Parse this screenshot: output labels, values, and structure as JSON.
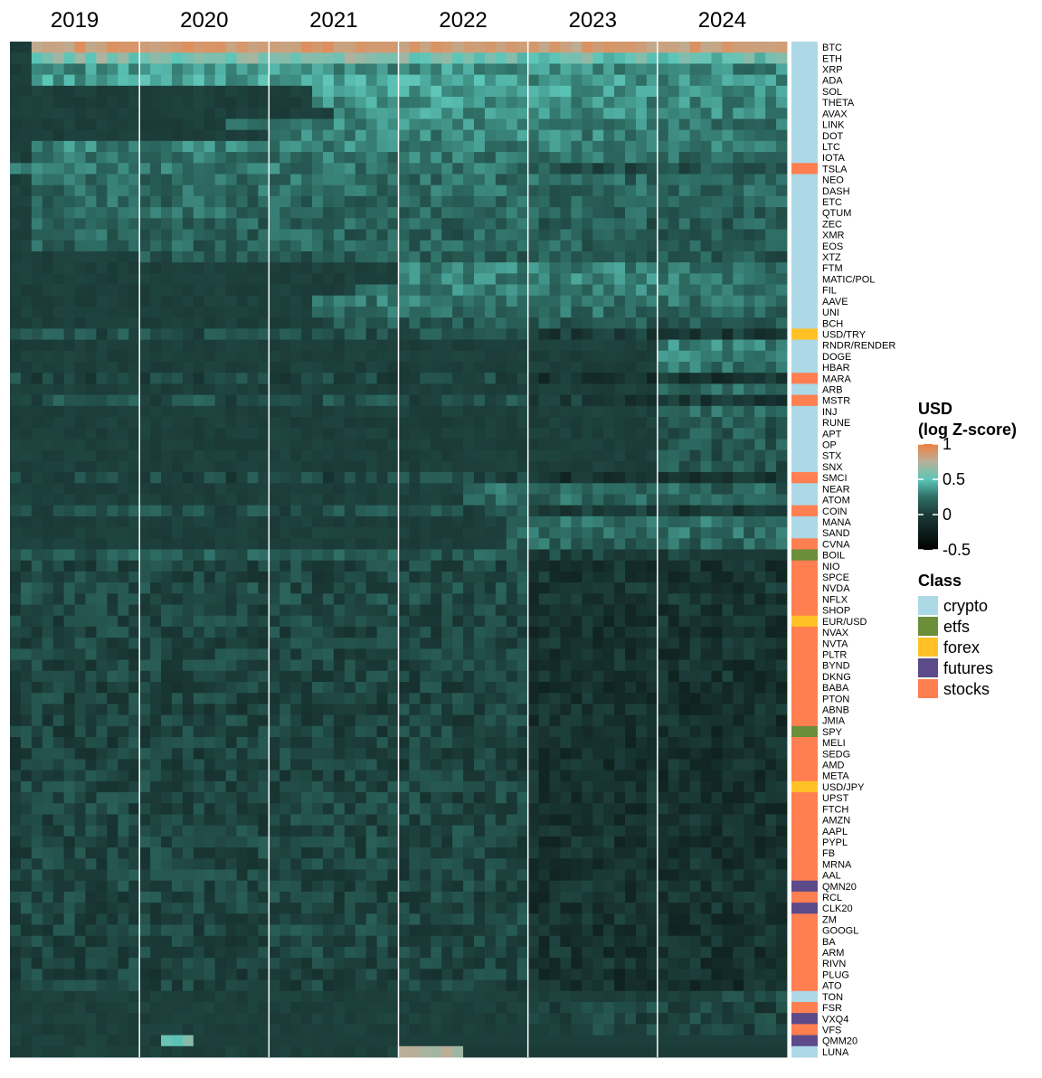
{
  "chart_data": {
    "type": "heatmap",
    "x_ticks": [
      "2019",
      "2020",
      "2021",
      "2022",
      "2023",
      "2024"
    ],
    "months_per_year": 12,
    "legend_title": [
      "USD",
      "(log Z-score)"
    ],
    "color_scale": {
      "min": -0.5,
      "max": 1,
      "ticks": [
        "1",
        "0.5",
        "0",
        "-0.5"
      ],
      "tick_values": [
        1,
        0.5,
        0,
        -0.5
      ],
      "stops": [
        {
          "value": -0.5,
          "color": "#000000"
        },
        {
          "value": 0,
          "color": "#1b3b38"
        },
        {
          "value": 0.25,
          "color": "#2f6f66"
        },
        {
          "value": 0.5,
          "color": "#5cc6b8"
        },
        {
          "value": 0.75,
          "color": "#b8b09a"
        },
        {
          "value": 1,
          "color": "#f08040"
        }
      ]
    },
    "class_legend_title": "Class",
    "classes": [
      {
        "name": "crypto",
        "color": "#add8e6"
      },
      {
        "name": "etfs",
        "color": "#6b8e3a"
      },
      {
        "name": "forex",
        "color": "#ffc125"
      },
      {
        "name": "futures",
        "color": "#5c4a8a"
      },
      {
        "name": "stocks",
        "color": "#ff7f50"
      }
    ],
    "rows": [
      {
        "name": "BTC",
        "class": "crypto",
        "level": 0.95,
        "start": 2
      },
      {
        "name": "ETH",
        "class": "crypto",
        "level": 0.6,
        "start": 2
      },
      {
        "name": "XRP",
        "class": "crypto",
        "level": 0.35,
        "start": 2
      },
      {
        "name": "ADA",
        "class": "crypto",
        "level": 0.4,
        "start": 2
      },
      {
        "name": "SOL",
        "class": "crypto",
        "level": 0.4,
        "start": 28
      },
      {
        "name": "THETA",
        "class": "crypto",
        "level": 0.35,
        "start": 28
      },
      {
        "name": "AVAX",
        "class": "crypto",
        "level": 0.35,
        "start": 30
      },
      {
        "name": "LINK",
        "class": "crypto",
        "level": 0.3,
        "start": 20
      },
      {
        "name": "DOT",
        "class": "crypto",
        "level": 0.3,
        "start": 24
      },
      {
        "name": "LTC",
        "class": "crypto",
        "level": 0.3,
        "start": 2
      },
      {
        "name": "IOTA",
        "class": "crypto",
        "level": 0.25,
        "start": 2
      },
      {
        "name": "TSLA",
        "class": "stocks",
        "level": 0.25,
        "start": 0
      },
      {
        "name": "NEO",
        "class": "crypto",
        "level": 0.22,
        "start": 2
      },
      {
        "name": "DASH",
        "class": "crypto",
        "level": 0.22,
        "start": 2
      },
      {
        "name": "ETC",
        "class": "crypto",
        "level": 0.2,
        "start": 2
      },
      {
        "name": "QTUM",
        "class": "crypto",
        "level": 0.2,
        "start": 2
      },
      {
        "name": "ZEC",
        "class": "crypto",
        "level": 0.18,
        "start": 2
      },
      {
        "name": "XMR",
        "class": "crypto",
        "level": 0.18,
        "start": 2
      },
      {
        "name": "EOS",
        "class": "crypto",
        "level": 0.18,
        "start": 2
      },
      {
        "name": "XTZ",
        "class": "crypto",
        "level": 0.15,
        "start": 12
      },
      {
        "name": "FTM",
        "class": "crypto",
        "level": 0.3,
        "start": 36
      },
      {
        "name": "MATIC/POL",
        "class": "crypto",
        "level": 0.3,
        "start": 36
      },
      {
        "name": "FIL",
        "class": "crypto",
        "level": 0.28,
        "start": 32
      },
      {
        "name": "AAVE",
        "class": "crypto",
        "level": 0.25,
        "start": 28
      },
      {
        "name": "UNI",
        "class": "crypto",
        "level": 0.22,
        "start": 28
      },
      {
        "name": "BCH",
        "class": "crypto",
        "level": 0.15,
        "start": 30
      },
      {
        "name": "USD/TRY",
        "class": "forex",
        "level": 0.1,
        "start": 0
      },
      {
        "name": "RNDR/RENDER",
        "class": "crypto",
        "level": 0.3,
        "start": 60
      },
      {
        "name": "DOGE",
        "class": "crypto",
        "level": 0.3,
        "start": 60
      },
      {
        "name": "HBAR",
        "class": "crypto",
        "level": 0.25,
        "start": 60
      },
      {
        "name": "MARA",
        "class": "stocks",
        "level": 0.05,
        "start": 0
      },
      {
        "name": "ARB",
        "class": "crypto",
        "level": 0.2,
        "start": 60
      },
      {
        "name": "MSTR",
        "class": "stocks",
        "level": 0.1,
        "start": 0
      },
      {
        "name": "INJ",
        "class": "crypto",
        "level": 0.2,
        "start": 60
      },
      {
        "name": "RUNE",
        "class": "crypto",
        "level": 0.15,
        "start": 60
      },
      {
        "name": "APT",
        "class": "crypto",
        "level": 0.15,
        "start": 60
      },
      {
        "name": "OP",
        "class": "crypto",
        "level": 0.15,
        "start": 60
      },
      {
        "name": "STX",
        "class": "crypto",
        "level": 0.12,
        "start": 60
      },
      {
        "name": "SNX",
        "class": "crypto",
        "level": 0.12,
        "start": 60
      },
      {
        "name": "SMCI",
        "class": "stocks",
        "level": 0.05,
        "start": 0
      },
      {
        "name": "NEAR",
        "class": "crypto",
        "level": 0.2,
        "start": 42
      },
      {
        "name": "ATOM",
        "class": "crypto",
        "level": 0.2,
        "start": 42
      },
      {
        "name": "COIN",
        "class": "stocks",
        "level": 0.1,
        "start": 0
      },
      {
        "name": "MANA",
        "class": "crypto",
        "level": 0.25,
        "start": 46
      },
      {
        "name": "SAND",
        "class": "crypto",
        "level": 0.25,
        "start": 46
      },
      {
        "name": "CVNA",
        "class": "stocks",
        "level": 0.2,
        "start": 46
      },
      {
        "name": "BOIL",
        "class": "etfs",
        "level": 0.15,
        "start": 0
      },
      {
        "name": "NIO",
        "class": "stocks",
        "level": 0.05,
        "start": 0
      },
      {
        "name": "SPCE",
        "class": "stocks",
        "level": 0.05,
        "start": 0
      },
      {
        "name": "NVDA",
        "class": "stocks",
        "level": 0.08,
        "start": 0
      },
      {
        "name": "NFLX",
        "class": "stocks",
        "level": 0.08,
        "start": 0
      },
      {
        "name": "SHOP",
        "class": "stocks",
        "level": 0.05,
        "start": 0
      },
      {
        "name": "EUR/USD",
        "class": "forex",
        "level": 0.05,
        "start": 0
      },
      {
        "name": "NVAX",
        "class": "stocks",
        "level": 0.05,
        "start": 0
      },
      {
        "name": "NVTA",
        "class": "stocks",
        "level": 0.05,
        "start": 0
      },
      {
        "name": "PLTR",
        "class": "stocks",
        "level": 0.05,
        "start": 0
      },
      {
        "name": "BYND",
        "class": "stocks",
        "level": 0.05,
        "start": 0
      },
      {
        "name": "DKNG",
        "class": "stocks",
        "level": 0.05,
        "start": 0
      },
      {
        "name": "BABA",
        "class": "stocks",
        "level": 0.03,
        "start": 0
      },
      {
        "name": "PTON",
        "class": "stocks",
        "level": 0.03,
        "start": 0
      },
      {
        "name": "ABNB",
        "class": "stocks",
        "level": 0.03,
        "start": 0
      },
      {
        "name": "JMIA",
        "class": "stocks",
        "level": 0.03,
        "start": 0
      },
      {
        "name": "SPY",
        "class": "etfs",
        "level": 0.03,
        "start": 0
      },
      {
        "name": "MELI",
        "class": "stocks",
        "level": 0.03,
        "start": 0
      },
      {
        "name": "SEDG",
        "class": "stocks",
        "level": 0.03,
        "start": 0
      },
      {
        "name": "AMD",
        "class": "stocks",
        "level": 0.03,
        "start": 0
      },
      {
        "name": "META",
        "class": "stocks",
        "level": 0.03,
        "start": 0
      },
      {
        "name": "USD/JPY",
        "class": "forex",
        "level": 0.05,
        "start": 0
      },
      {
        "name": "UPST",
        "class": "stocks",
        "level": 0.05,
        "start": 0
      },
      {
        "name": "FTCH",
        "class": "stocks",
        "level": 0.05,
        "start": 0
      },
      {
        "name": "AMZN",
        "class": "stocks",
        "level": 0.05,
        "start": 0
      },
      {
        "name": "AAPL",
        "class": "stocks",
        "level": 0.05,
        "start": 0
      },
      {
        "name": "PYPL",
        "class": "stocks",
        "level": 0.05,
        "start": 0
      },
      {
        "name": "FB",
        "class": "stocks",
        "level": 0.05,
        "start": 0
      },
      {
        "name": "MRNA",
        "class": "stocks",
        "level": 0.05,
        "start": 0
      },
      {
        "name": "AAL",
        "class": "stocks",
        "level": 0.05,
        "start": 0
      },
      {
        "name": "QMN20",
        "class": "futures",
        "level": 0.05,
        "start": 0
      },
      {
        "name": "RCL",
        "class": "stocks",
        "level": 0.05,
        "start": 0
      },
      {
        "name": "CLK20",
        "class": "futures",
        "level": 0.05,
        "start": 0
      },
      {
        "name": "ZM",
        "class": "stocks",
        "level": 0.05,
        "start": 0
      },
      {
        "name": "GOOGL",
        "class": "stocks",
        "level": 0.05,
        "start": 0
      },
      {
        "name": "BA",
        "class": "stocks",
        "level": 0.05,
        "start": 0
      },
      {
        "name": "ARM",
        "class": "stocks",
        "level": 0.05,
        "start": 0
      },
      {
        "name": "RIVN",
        "class": "stocks",
        "level": 0.05,
        "start": 0
      },
      {
        "name": "PLUG",
        "class": "stocks",
        "level": 0.03,
        "start": 0
      },
      {
        "name": "ATO",
        "class": "stocks",
        "level": 0.03,
        "start": 0
      },
      {
        "name": "TON",
        "class": "crypto",
        "level": 0.05,
        "start": 66
      },
      {
        "name": "FSR",
        "class": "stocks",
        "level": 0.03,
        "start": 48
      },
      {
        "name": "VXQ4",
        "class": "futures",
        "level": 0.03,
        "start": 48
      },
      {
        "name": "VFS",
        "class": "stocks",
        "level": 0.03,
        "start": 54
      },
      {
        "name": "QMM20",
        "class": "futures",
        "level": 0.5,
        "start": 14
      },
      {
        "name": "LUNA",
        "class": "crypto",
        "level": 0.75,
        "start": 36
      }
    ]
  }
}
